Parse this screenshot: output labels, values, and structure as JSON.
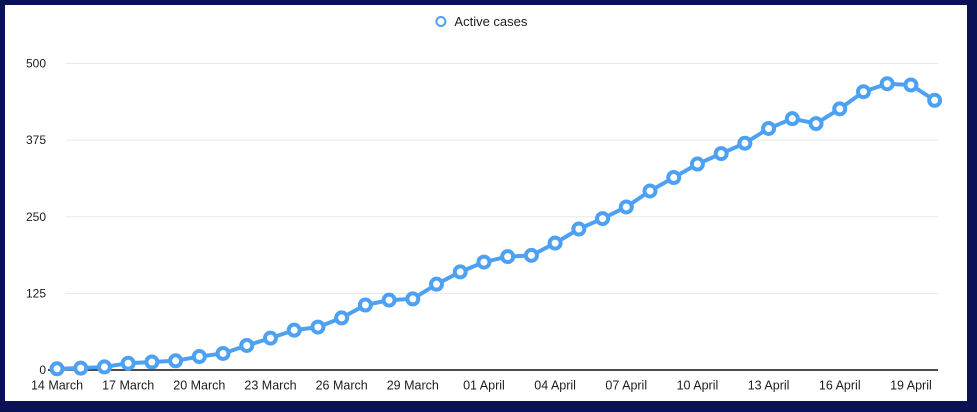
{
  "colors": {
    "line": "#4da1f2",
    "marker_fill": "#ffffff",
    "frame": "#0a1155",
    "grid": "#e7e7e7",
    "axis": "#111111",
    "text": "#1d1d1f"
  },
  "chart_data": {
    "type": "line",
    "x": [
      "14 March",
      "15 March",
      "16 March",
      "17 March",
      "18 March",
      "19 March",
      "20 March",
      "21 March",
      "22 March",
      "23 March",
      "24 March",
      "25 March",
      "26 March",
      "27 March",
      "28 March",
      "29 March",
      "30 March",
      "31 March",
      "01 April",
      "02 April",
      "03 April",
      "04 April",
      "05 April",
      "06 April",
      "07 April",
      "08 April",
      "09 April",
      "10 April",
      "11 April",
      "12 April",
      "13 April",
      "14 April",
      "15 April",
      "16 April",
      "17 April",
      "18 April",
      "19 April",
      "20 April"
    ],
    "series": [
      {
        "name": "Active cases",
        "values": [
          2,
          3,
          5,
          11,
          13,
          15,
          22,
          27,
          40,
          52,
          65,
          70,
          85,
          106,
          114,
          116,
          140,
          160,
          176,
          185,
          187,
          207,
          230,
          247,
          266,
          292,
          314,
          336,
          353,
          370,
          394,
          410,
          402,
          426,
          454,
          467,
          465,
          440
        ]
      }
    ],
    "x_tick_labels": [
      "14 March",
      "17 March",
      "20 March",
      "23 March",
      "26 March",
      "29 March",
      "01 April",
      "04 April",
      "07 April",
      "10 April",
      "13 April",
      "16 April",
      "19 April"
    ],
    "tick_interval": 3,
    "yticks": [
      0,
      125,
      250,
      375,
      500
    ],
    "ylim": [
      0,
      500
    ],
    "grid": true,
    "legend_position": "top-center",
    "marker": "ring"
  }
}
